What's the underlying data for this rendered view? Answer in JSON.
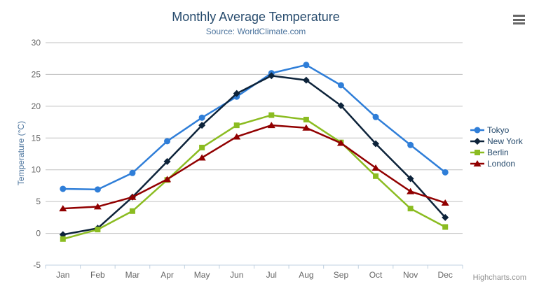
{
  "chart": {
    "title": "Monthly Average Temperature",
    "subtitle": "Source: WorldClimate.com",
    "credits": "Highcharts.com",
    "y_axis": {
      "title": "Temperature (°C)"
    },
    "icons": {
      "export_menu": "hamburger-icon"
    },
    "colors": {
      "title": "#274b6d",
      "subtitle": "#4d759e",
      "axis_labels": "#666666",
      "grid_line": "#c0c0c0",
      "x_axis_line": "#c0d0e0",
      "legend_text": "#274b6d",
      "credits_text": "#909090",
      "export_icon": "#666666"
    }
  },
  "chart_data": {
    "type": "line",
    "title": "Monthly Average Temperature",
    "subtitle": "Source: WorldClimate.com",
    "xlabel": "",
    "ylabel": "Temperature (°C)",
    "categories": [
      "Jan",
      "Feb",
      "Mar",
      "Apr",
      "May",
      "Jun",
      "Jul",
      "Aug",
      "Sep",
      "Oct",
      "Nov",
      "Dec"
    ],
    "ylim": [
      -5,
      30
    ],
    "yticks": [
      -5,
      0,
      5,
      10,
      15,
      20,
      25,
      30
    ],
    "grid": true,
    "legend_position": "right",
    "series": [
      {
        "name": "Tokyo",
        "color": "#2f7ed8",
        "marker": "circle",
        "values": [
          7.0,
          6.9,
          9.5,
          14.5,
          18.2,
          21.5,
          25.2,
          26.5,
          23.3,
          18.3,
          13.9,
          9.6
        ]
      },
      {
        "name": "New York",
        "color": "#0d233a",
        "marker": "diamond",
        "values": [
          -0.2,
          0.8,
          5.7,
          11.3,
          17.0,
          22.0,
          24.8,
          24.1,
          20.1,
          14.1,
          8.6,
          2.5
        ]
      },
      {
        "name": "Berlin",
        "color": "#8bbc21",
        "marker": "square",
        "values": [
          -0.9,
          0.6,
          3.5,
          8.4,
          13.5,
          17.0,
          18.6,
          17.9,
          14.3,
          9.0,
          3.9,
          1.0
        ]
      },
      {
        "name": "London",
        "color": "#910000",
        "marker": "triangle",
        "values": [
          3.9,
          4.2,
          5.7,
          8.5,
          11.9,
          15.2,
          17.0,
          16.6,
          14.2,
          10.3,
          6.6,
          4.8
        ]
      }
    ]
  }
}
